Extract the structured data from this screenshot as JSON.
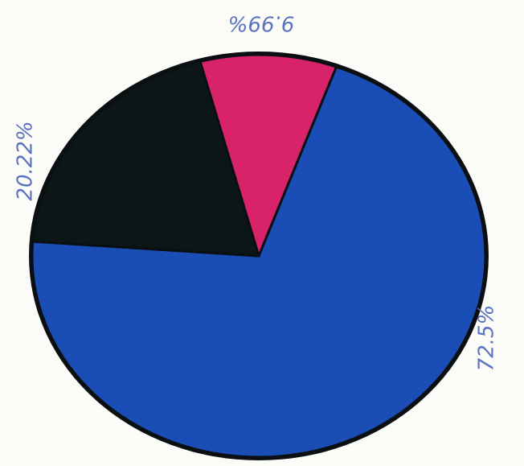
{
  "chart_data": {
    "type": "pie",
    "categories": [
      null,
      null,
      null
    ],
    "values": [
      9.99,
      72.5,
      20.22
    ],
    "value_labels": [
      "9.99%",
      "72.5%",
      "20.22%"
    ],
    "colors": [
      "#d8226a",
      "#1a4db5",
      "#0c1616"
    ]
  }
}
